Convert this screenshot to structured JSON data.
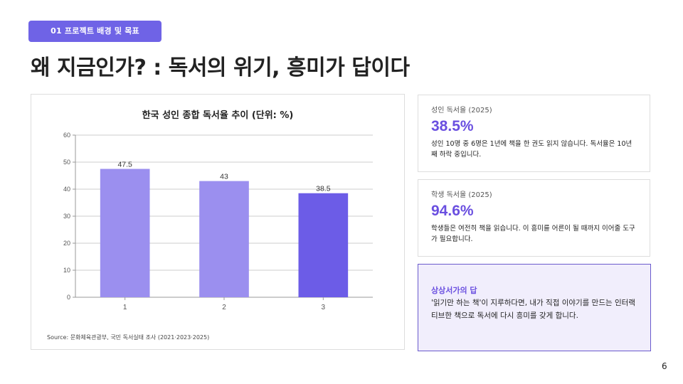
{
  "header": {
    "section_tag": "01 프로젝트 배경 및 목표",
    "title": "왜 지금인가? : 독서의 위기, 흥미가 답이다"
  },
  "chart_data": {
    "type": "bar",
    "title": "한국 성인 종합 독서율 추이 (단위: %)",
    "categories": [
      "1",
      "2",
      "3"
    ],
    "values": [
      47.5,
      43,
      38.5
    ],
    "data_labels": [
      "47.5",
      "43",
      "38.5"
    ],
    "colors": [
      "#9b8fef",
      "#9b8fef",
      "#6c5ce7"
    ],
    "ylim": [
      0,
      60
    ],
    "yticks": [
      0,
      10,
      20,
      30,
      40,
      50,
      60
    ],
    "ytick_labels": [
      "0",
      "10",
      "20",
      "30",
      "40",
      "50",
      "60"
    ],
    "grid": true,
    "xlabel": "",
    "ylabel": "",
    "source": "Source: 문화체육관광부, 국민 독서실태 조사 (2021·2023·2025)"
  },
  "stats": [
    {
      "label": "성인 독서율 (2025)",
      "value": "38.5%",
      "desc": "성인 10명 중 6명은 1년에 책을 한 권도 읽지 않습니다. 독서율은 10년째 하락 중입니다."
    },
    {
      "label": "학생 독서율 (2025)",
      "value": "94.6%",
      "desc": "학생들은 여전히 책을 읽습니다. 이 흥미를 어른이 될 때까지 이어줄 도구가 필요합니다."
    }
  ],
  "answer": {
    "title": "상상서가의 답",
    "text": "'읽기만 하는 책'이 지루하다면, 내가 직접 이야기를 만드는 인터랙티브한 책으로 독서에 다시 흥미를 갖게 합니다."
  },
  "page_number": "6",
  "colors": {
    "accent": "#6f63e6",
    "value_text": "#6a4fe0",
    "answer_bg": "#f1eefc"
  }
}
